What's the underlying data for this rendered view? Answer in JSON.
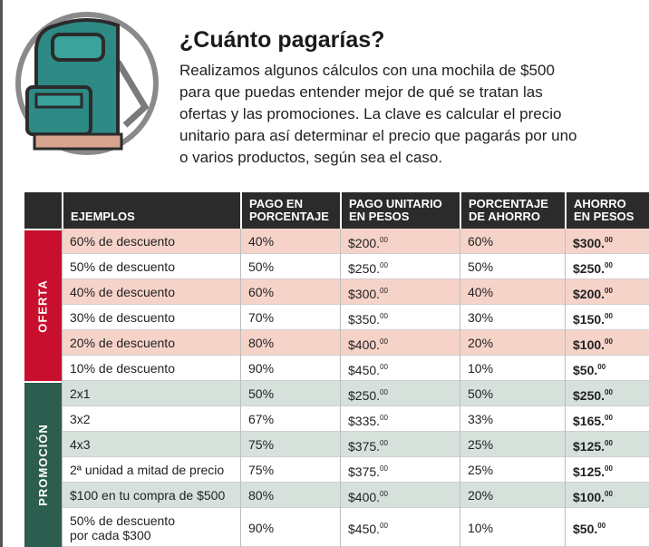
{
  "header": {
    "title": "¿Cuánto pagarías?",
    "intro": [
      "Realizamos algunos cálculos con una mochila de $500",
      "para que puedas entender mejor de qué se tratan las",
      "ofertas y las promociones. La clave es calcular el precio",
      "unitario para así determinar el precio que pagarás por uno",
      "o varios productos, según sea el caso."
    ]
  },
  "table": {
    "columns": [
      [
        "EJEMPLOS"
      ],
      [
        "PAGO EN",
        "PORCENTAJE"
      ],
      [
        "PAGO UNITARIO",
        "EN PESOS"
      ],
      [
        "PORCENTAJE",
        "DE AHORRO"
      ],
      [
        "AHORRO",
        "EN PESOS"
      ]
    ],
    "groups": [
      {
        "label": "OFERTA",
        "rows": [
          [
            "60% de descuento",
            "40%",
            {
              "main": "$200.",
              "cents": "00"
            },
            "60%",
            {
              "main": "$300.",
              "cents": "00"
            }
          ],
          [
            "50% de descuento",
            "50%",
            {
              "main": "$250.",
              "cents": "00"
            },
            "50%",
            {
              "main": "$250.",
              "cents": "00"
            }
          ],
          [
            "40% de descuento",
            "60%",
            {
              "main": "$300.",
              "cents": "00"
            },
            "40%",
            {
              "main": "$200.",
              "cents": "00"
            }
          ],
          [
            "30% de descuento",
            "70%",
            {
              "main": "$350.",
              "cents": "00"
            },
            "30%",
            {
              "main": "$150.",
              "cents": "00"
            }
          ],
          [
            "20% de descuento",
            "80%",
            {
              "main": "$400.",
              "cents": "00"
            },
            "20%",
            {
              "main": "$100.",
              "cents": "00"
            }
          ],
          [
            "10% de descuento",
            "90%",
            {
              "main": "$450.",
              "cents": "00"
            },
            "10%",
            {
              "main": "$50.",
              "cents": "00"
            }
          ]
        ]
      },
      {
        "label": "PROMOCIÓN",
        "rows": [
          [
            "2x1",
            "50%",
            {
              "main": "$250.",
              "cents": "00"
            },
            "50%",
            {
              "main": "$250.",
              "cents": "00"
            }
          ],
          [
            "3x2",
            "67%",
            {
              "main": "$335.",
              "cents": "00"
            },
            "33%",
            {
              "main": "$165.",
              "cents": "00"
            }
          ],
          [
            "4x3",
            "75%",
            {
              "main": "$375.",
              "cents": "00"
            },
            "25%",
            {
              "main": "$125.",
              "cents": "00"
            }
          ],
          [
            "2ª unidad a mitad de precio",
            "75%",
            {
              "main": "$375.",
              "cents": "00"
            },
            "25%",
            {
              "main": "$125.",
              "cents": "00"
            }
          ],
          [
            "$100 en tu compra de $500",
            "80%",
            {
              "main": "$400.",
              "cents": "00"
            },
            "20%",
            {
              "main": "$100.",
              "cents": "00"
            }
          ],
          [
            [
              "50% de descuento",
              "por cada $300"
            ],
            "90%",
            {
              "main": "$450.",
              "cents": "00"
            },
            "10%",
            {
              "main": "$50.",
              "cents": "00"
            }
          ]
        ]
      }
    ]
  }
}
